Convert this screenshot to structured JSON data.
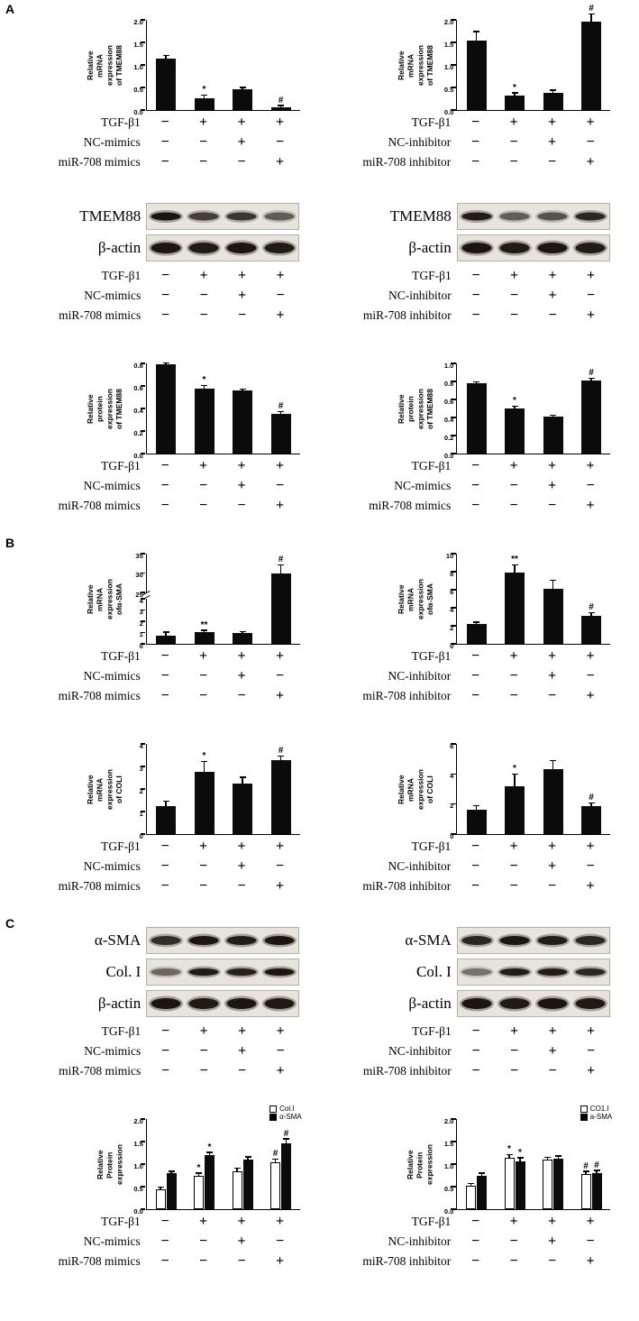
{
  "colors": {
    "bar_fill": "#000000",
    "open_bar_fill": "#ffffff",
    "blot_background": "#e7e4de"
  },
  "treatments": {
    "mimics": {
      "rows": [
        {
          "label": "TGF-β1",
          "signs": [
            "−",
            "+",
            "+",
            "+"
          ]
        },
        {
          "label": "NC-mimics",
          "signs": [
            "−",
            "−",
            "+",
            "−"
          ]
        },
        {
          "label": "miR-708 mimics",
          "signs": [
            "−",
            "−",
            "−",
            "+"
          ]
        }
      ]
    },
    "inhibitor": {
      "rows": [
        {
          "label": "TGF-β1",
          "signs": [
            "−",
            "+",
            "+",
            "+"
          ]
        },
        {
          "label": "NC-inhibitor",
          "signs": [
            "−",
            "−",
            "+",
            "−"
          ]
        },
        {
          "label": "miR-708 inhibitor",
          "signs": [
            "−",
            "−",
            "−",
            "+"
          ]
        }
      ]
    }
  },
  "chart_data": [
    {
      "id": "A1-left",
      "type": "bar",
      "title": "",
      "xlabel": "",
      "ylabel": "Relative mRNA\nexpression of TMEM88",
      "ylim": [
        0,
        2.0
      ],
      "yticks": [
        "0.0",
        "0.5",
        "1.0",
        "1.5",
        "2.0"
      ],
      "values": [
        1.15,
        0.27,
        0.47,
        0.06
      ],
      "errors": [
        0.05,
        0.05,
        0.02,
        0.03
      ],
      "sig": [
        "",
        "*",
        "",
        "#"
      ],
      "treatments": "mimics"
    },
    {
      "id": "A1-right",
      "type": "bar",
      "title": "",
      "xlabel": "",
      "ylabel": "Relative mRNA\nexpression of TMEM88",
      "ylim": [
        0,
        2.0
      ],
      "yticks": [
        "0.0",
        "0.5",
        "1.0",
        "1.5",
        "2.0"
      ],
      "values": [
        1.55,
        0.33,
        0.38,
        1.97
      ],
      "errors": [
        0.18,
        0.04,
        0.05,
        0.15
      ],
      "sig": [
        "",
        "*",
        "",
        "#"
      ],
      "treatments": "inhibitor"
    },
    {
      "id": "A3-left",
      "type": "bar",
      "title": "",
      "xlabel": "",
      "ylabel": "Relative protein\nexpression of TMEM88",
      "ylim": [
        0,
        0.8
      ],
      "yticks": [
        "0.0",
        "0.2",
        "0.4",
        "0.6",
        "0.8"
      ],
      "values": [
        0.79,
        0.58,
        0.56,
        0.35
      ],
      "errors": [
        0.01,
        0.02,
        0.01,
        0.02
      ],
      "sig": [
        "",
        "*",
        "",
        "#"
      ],
      "treatments": "mimics"
    },
    {
      "id": "A3-right",
      "type": "bar",
      "title": "",
      "xlabel": "",
      "ylabel": "Relative protein\nexpression of TMEM88",
      "ylim": [
        0,
        1.0
      ],
      "yticks": [
        "0.0",
        "0.2",
        "0.4",
        "0.6",
        "0.8",
        "1.0"
      ],
      "values": [
        0.78,
        0.5,
        0.41,
        0.81
      ],
      "errors": [
        0.01,
        0.02,
        0.01,
        0.02
      ],
      "sig": [
        "",
        "*",
        "",
        "#"
      ],
      "treatments": "mimics"
    },
    {
      "id": "B1-left",
      "type": "bar",
      "title": "",
      "xlabel": "",
      "ylabel": "Relative mRNA\nexpression ofα-SMA",
      "ylim": [
        0,
        35
      ],
      "ybreak": {
        "lower_max": 4,
        "upper_min": 25,
        "upper_max": 35,
        "lower_ticks": [
          "0",
          "1",
          "2",
          "3",
          "4"
        ],
        "upper_ticks": [
          "25",
          "30",
          "35"
        ],
        "lower_frac": 0.5,
        "gap_frac": 0.07
      },
      "values": [
        0.7,
        1.05,
        1.0,
        30
      ],
      "errors": [
        0.3,
        0.1,
        0.05,
        2
      ],
      "sig": [
        "",
        "**",
        "",
        "#"
      ],
      "treatments": "mimics"
    },
    {
      "id": "B1-right",
      "type": "bar",
      "title": "",
      "xlabel": "",
      "ylabel": "Relative mRNA\nexpression ofα-SMA",
      "ylim": [
        0,
        10
      ],
      "yticks": [
        "0",
        "2",
        "4",
        "6",
        "8",
        "10"
      ],
      "values": [
        2.2,
        7.9,
        6.1,
        3.1
      ],
      "errors": [
        0.15,
        0.8,
        0.9,
        0.3
      ],
      "sig": [
        "",
        "**",
        "",
        "#"
      ],
      "treatments": "inhibitor"
    },
    {
      "id": "B2-left",
      "type": "bar",
      "title": "",
      "xlabel": "",
      "ylabel": "Relative mRNA\nexpression of COLI",
      "ylim": [
        0,
        4
      ],
      "yticks": [
        "0",
        "1",
        "2",
        "3",
        "4"
      ],
      "values": [
        1.25,
        2.75,
        2.25,
        3.3
      ],
      "errors": [
        0.2,
        0.45,
        0.25,
        0.15
      ],
      "sig": [
        "",
        "*",
        "",
        "#"
      ],
      "treatments": "mimics"
    },
    {
      "id": "B2-right",
      "type": "bar",
      "title": "",
      "xlabel": "",
      "ylabel": "Relative mRNA\nexpression of COLI",
      "ylim": [
        0,
        6
      ],
      "yticks": [
        "0",
        "2",
        "4",
        "6"
      ],
      "values": [
        1.6,
        3.2,
        4.3,
        1.85
      ],
      "errors": [
        0.25,
        0.75,
        0.55,
        0.2
      ],
      "sig": [
        "",
        "*",
        "",
        "#"
      ],
      "treatments": "inhibitor"
    },
    {
      "id": "C-left",
      "type": "grouped-bar",
      "title": "",
      "xlabel": "",
      "ylabel": "Relative Protein expression",
      "ylim": [
        0,
        2.0
      ],
      "yticks": [
        "0.0",
        "0.5",
        "1.0",
        "1.5",
        "2.0"
      ],
      "legend": [
        {
          "label": "Col.I",
          "fill": "#ffffff"
        },
        {
          "label": "α-SMA",
          "fill": "#000000"
        }
      ],
      "legend_position": "top-right",
      "series": [
        {
          "name": "Col.I",
          "values": [
            0.45,
            0.75,
            0.85,
            1.05
          ],
          "errors": [
            0.03,
            0.04,
            0.05,
            0.05
          ],
          "sig": [
            "",
            "*",
            "",
            "#"
          ]
        },
        {
          "name": "α-SMA",
          "values": [
            0.8,
            1.2,
            1.1,
            1.47
          ],
          "errors": [
            0.03,
            0.05,
            0.05,
            0.08
          ],
          "sig": [
            "",
            "*",
            "",
            "#"
          ]
        }
      ],
      "treatments": "mimics"
    },
    {
      "id": "C-right",
      "type": "grouped-bar",
      "title": "",
      "xlabel": "",
      "ylabel": "Relative Protein expression",
      "ylim": [
        0,
        2.0
      ],
      "yticks": [
        "0.0",
        "0.5",
        "1.0",
        "1.5",
        "2.0"
      ],
      "legend": [
        {
          "label": "CO1.I",
          "fill": "#ffffff"
        },
        {
          "label": "a-SMA",
          "fill": "#000000"
        }
      ],
      "legend_position": "top-right",
      "series": [
        {
          "name": "CO1.I",
          "values": [
            0.52,
            1.15,
            1.1,
            0.78
          ],
          "errors": [
            0.04,
            0.05,
            0.04,
            0.05
          ],
          "sig": [
            "",
            "*",
            "",
            "#"
          ]
        },
        {
          "name": "a-SMA",
          "values": [
            0.75,
            1.07,
            1.12,
            0.8
          ],
          "errors": [
            0.04,
            0.06,
            0.05,
            0.05
          ],
          "sig": [
            "",
            "*",
            "",
            "#"
          ]
        }
      ],
      "treatments": "inhibitor"
    }
  ],
  "blots": [
    {
      "id": "A-blot-left",
      "rows": [
        {
          "label": "TMEM88",
          "thickness": 4.5,
          "intensities": [
            0.95,
            0.7,
            0.75,
            0.55
          ]
        },
        {
          "label": "β-actin",
          "thickness": 6,
          "intensities": [
            0.95,
            0.92,
            0.95,
            0.92
          ]
        }
      ],
      "treatments": "mimics"
    },
    {
      "id": "A-blot-right",
      "rows": [
        {
          "label": "TMEM88",
          "thickness": 4.5,
          "intensities": [
            0.9,
            0.55,
            0.6,
            0.85
          ]
        },
        {
          "label": "β-actin",
          "thickness": 6,
          "intensities": [
            0.95,
            0.92,
            0.95,
            0.92
          ]
        }
      ],
      "treatments": "inhibitor"
    },
    {
      "id": "C-blot-left",
      "rows": [
        {
          "label": "α-SMA",
          "thickness": 5,
          "intensities": [
            0.8,
            0.95,
            0.9,
            0.95
          ]
        },
        {
          "label": "Col. I",
          "thickness": 4,
          "intensities": [
            0.5,
            0.92,
            0.88,
            0.95
          ]
        },
        {
          "label": "β-actin",
          "thickness": 6,
          "intensities": [
            0.95,
            0.93,
            0.95,
            0.93
          ]
        }
      ],
      "treatments": "mimics"
    },
    {
      "id": "C-blot-right",
      "rows": [
        {
          "label": "α-SMA",
          "thickness": 5,
          "intensities": [
            0.85,
            0.95,
            0.9,
            0.85
          ]
        },
        {
          "label": "Col. I",
          "thickness": 4,
          "intensities": [
            0.45,
            0.9,
            0.9,
            0.85
          ]
        },
        {
          "label": "β-actin",
          "thickness": 6,
          "intensities": [
            0.95,
            0.93,
            0.95,
            0.93
          ]
        }
      ],
      "treatments": "inhibitor"
    }
  ],
  "panels": [
    {
      "label": "A",
      "rows": [
        {
          "type": "charts",
          "refs": [
            "A1-left",
            "A1-right"
          ]
        },
        {
          "type": "blots",
          "refs": [
            "A-blot-left",
            "A-blot-right"
          ]
        },
        {
          "type": "charts",
          "refs": [
            "A3-left",
            "A3-right"
          ]
        }
      ]
    },
    {
      "label": "B",
      "rows": [
        {
          "type": "charts",
          "refs": [
            "B1-left",
            "B1-right"
          ]
        },
        {
          "type": "charts",
          "refs": [
            "B2-left",
            "B2-right"
          ]
        }
      ]
    },
    {
      "label": "C",
      "rows": [
        {
          "type": "blots",
          "refs": [
            "C-blot-left",
            "C-blot-right"
          ]
        },
        {
          "type": "charts",
          "refs": [
            "C-left",
            "C-right"
          ]
        }
      ]
    }
  ]
}
